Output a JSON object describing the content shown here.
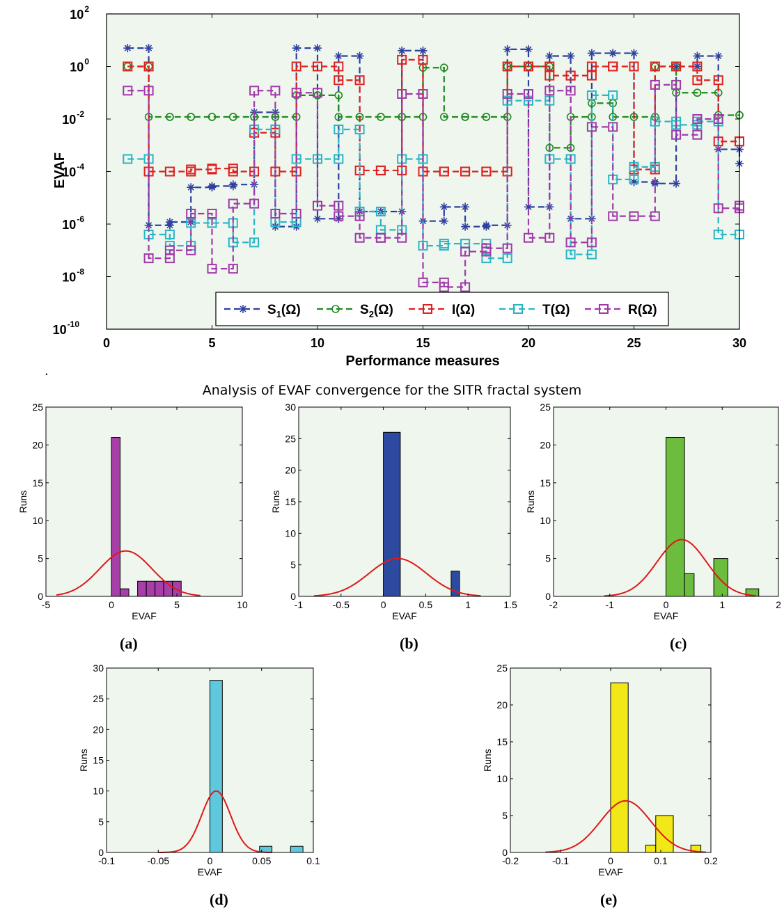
{
  "main_plot": {
    "ylabel": "EVAF",
    "xlabel": "Performance measures",
    "xlim": [
      0,
      30
    ],
    "ylim_log10": [
      -10,
      2
    ],
    "y_scale": "log",
    "x_ticks": [
      "0",
      "5",
      "10",
      "15",
      "20",
      "25",
      "30"
    ],
    "y_ticks": [
      {
        "base": "10",
        "exp": "2"
      },
      {
        "base": "10",
        "exp": "0"
      },
      {
        "base": "10",
        "exp": "-2"
      },
      {
        "base": "10",
        "exp": "-4"
      },
      {
        "base": "10",
        "exp": "-6"
      },
      {
        "base": "10",
        "exp": "-8"
      },
      {
        "base": "10",
        "exp": "-10"
      }
    ],
    "background": "#eef6ee",
    "legend_position": "bottom-right",
    "legend": [
      {
        "prefix": "S",
        "sub": "1",
        "suffix": "(Ω)"
      },
      {
        "prefix": "S",
        "sub": "2",
        "suffix": "(Ω)"
      },
      {
        "prefix": "I",
        "sub": "",
        "suffix": "(Ω)"
      },
      {
        "prefix": "T",
        "sub": "",
        "suffix": "(Ω)"
      },
      {
        "prefix": "R",
        "sub": "",
        "suffix": "(Ω)"
      }
    ]
  },
  "separator": ".",
  "histogram_title": "Analysis of EVAF convergence for the SITR fractal system",
  "chart_data": [
    {
      "type": "line",
      "y_scale": "log",
      "line_style": "dashed stairs",
      "x": [
        1,
        2,
        3,
        4,
        5,
        6,
        7,
        8,
        9,
        10,
        11,
        12,
        13,
        14,
        15,
        16,
        17,
        18,
        19,
        20,
        21,
        22,
        23,
        24,
        25,
        26,
        27,
        28,
        29,
        30
      ],
      "series": [
        {
          "legend_index": 0,
          "marker": "star",
          "color": "#2e3fa0",
          "values": [
            5,
            9e-07,
            1.2e-06,
            2.5e-05,
            2.8e-05,
            3.2e-05,
            0.018,
            8e-07,
            5,
            1.6e-06,
            2.5,
            3e-06,
            3e-06,
            4,
            1.3e-06,
            4.5e-06,
            8e-07,
            9e-07,
            4.5,
            4.5e-06,
            2.5,
            1.6e-06,
            3.2,
            3.2,
            4e-05,
            3.5e-05,
            1,
            2.5,
            0.0007,
            0.0002
          ]
        },
        {
          "legend_index": 1,
          "marker": "circle",
          "color": "#1f8a1f",
          "values": [
            1,
            0.012,
            0.012,
            0.012,
            0.012,
            0.012,
            0.012,
            0.012,
            0.08,
            0.08,
            0.012,
            0.012,
            0.012,
            0.012,
            0.9,
            0.012,
            0.012,
            0.012,
            1,
            1,
            0.0008,
            0.012,
            0.04,
            0.012,
            0.012,
            1,
            0.1,
            0.1,
            0.014,
            0.014
          ]
        },
        {
          "legend_index": 2,
          "marker": "square",
          "color": "#e02020",
          "values": [
            1,
            0.0001,
            0.0001,
            0.00012,
            0.00013,
            0.0001,
            0.003,
            0.0001,
            1,
            1,
            0.3,
            0.00011,
            0.00011,
            1.8,
            0.0001,
            0.0001,
            0.0001,
            0.0001,
            1,
            1,
            0.45,
            0.45,
            1,
            1,
            0.00012,
            1,
            1,
            0.3,
            0.0014,
            0.0014
          ]
        },
        {
          "legend_index": 3,
          "marker": "square",
          "color": "#2ab5c5",
          "values": [
            0.0003,
            4e-07,
            1.5e-07,
            1.1e-06,
            1.1e-06,
            2e-07,
            0.004,
            1.2e-06,
            0.0003,
            0.0003,
            0.004,
            3e-06,
            6e-07,
            0.0003,
            1.5e-07,
            1.8e-07,
            1.8e-07,
            5e-08,
            0.05,
            0.05,
            0.0003,
            7e-08,
            0.08,
            5e-05,
            0.00015,
            0.008,
            0.006,
            0.008,
            4e-07,
            4e-07
          ]
        },
        {
          "legend_index": 4,
          "marker": "square",
          "color": "#a03aa8",
          "values": [
            0.12,
            5e-08,
            1e-07,
            2.5e-06,
            2e-08,
            6e-06,
            0.12,
            2.5e-06,
            0.1,
            5e-06,
            2e-06,
            3e-07,
            3e-07,
            0.09,
            6e-09,
            4e-09,
            9e-08,
            1.2e-07,
            0.09,
            3e-07,
            0.12,
            2e-07,
            0.005,
            2e-06,
            2e-06,
            0.2,
            0.0025,
            0.01,
            4e-06,
            5e-06
          ]
        }
      ]
    },
    {
      "type": "bar",
      "panel": "(a)",
      "xlabel": "EVAF",
      "ylabel": "Runs",
      "xlim": [
        -5,
        10
      ],
      "ylim": [
        0,
        25
      ],
      "x_ticks": [
        "-5",
        "0",
        "5",
        "10"
      ],
      "y_ticks": [
        "0",
        "5",
        "10",
        "15",
        "20",
        "25"
      ],
      "bar_color": "#a83ea8",
      "bins": [
        {
          "x0": 0,
          "x1": 0.6667,
          "count": 21
        },
        {
          "x0": 0.6667,
          "x1": 1.3333,
          "count": 1
        },
        {
          "x0": 1.3333,
          "x1": 2,
          "count": 0
        },
        {
          "x0": 2,
          "x1": 2.6667,
          "count": 2
        },
        {
          "x0": 2.6667,
          "x1": 3.3333,
          "count": 2
        },
        {
          "x0": 3.3333,
          "x1": 4,
          "count": 2
        },
        {
          "x0": 4,
          "x1": 4.6667,
          "count": 2
        },
        {
          "x0": 4.6667,
          "x1": 5.3333,
          "count": 2
        }
      ],
      "fit": {
        "mean": 1.1,
        "sigma": 2.0,
        "peak": 6,
        "x_from": -4.2,
        "x_to": 6.8
      }
    },
    {
      "type": "bar",
      "panel": "(b)",
      "xlabel": "EVAF",
      "ylabel": "Runs",
      "xlim": [
        -1,
        1.5
      ],
      "ylim": [
        0,
        30
      ],
      "x_ticks": [
        "-1",
        "-0.5",
        "0",
        "0.5",
        "1",
        "1.5"
      ],
      "y_ticks": [
        "0",
        "5",
        "10",
        "15",
        "20",
        "25",
        "30"
      ],
      "bar_color": "#2e4aa0",
      "bins": [
        {
          "x0": 0,
          "x1": 0.2,
          "count": 26
        },
        {
          "x0": 0.8,
          "x1": 0.9,
          "count": 4
        }
      ],
      "fit": {
        "mean": 0.17,
        "sigma": 0.34,
        "peak": 6,
        "x_from": -0.82,
        "x_to": 1.15
      }
    },
    {
      "type": "bar",
      "panel": "(c)",
      "xlabel": "EVAF",
      "ylabel": "Runs",
      "xlim": [
        -2,
        2
      ],
      "ylim": [
        0,
        25
      ],
      "x_ticks": [
        "-2",
        "-1",
        "0",
        "1",
        "2"
      ],
      "y_ticks": [
        "0",
        "5",
        "10",
        "15",
        "20",
        "25"
      ],
      "bar_color": "#6cbc3e",
      "bins": [
        {
          "x0": 0,
          "x1": 0.33,
          "count": 21
        },
        {
          "x0": 0.33,
          "x1": 0.5,
          "count": 3
        },
        {
          "x0": 0.85,
          "x1": 1.1,
          "count": 5
        },
        {
          "x0": 1.42,
          "x1": 1.65,
          "count": 1
        }
      ],
      "fit": {
        "mean": 0.28,
        "sigma": 0.44,
        "peak": 7.5,
        "x_from": -1.1,
        "x_to": 1.6
      }
    },
    {
      "type": "bar",
      "panel": "(d)",
      "xlabel": "EVAF",
      "ylabel": "Runs",
      "xlim": [
        -0.1,
        0.1
      ],
      "ylim": [
        0,
        30
      ],
      "x_ticks": [
        "-0.1",
        "-0.05",
        "0",
        "0.05",
        "0.1"
      ],
      "y_ticks": [
        "0",
        "5",
        "10",
        "15",
        "20",
        "25",
        "30"
      ],
      "bar_color": "#5fc8dc",
      "bins": [
        {
          "x0": 0,
          "x1": 0.012,
          "count": 28
        },
        {
          "x0": 0.048,
          "x1": 0.06,
          "count": 1
        },
        {
          "x0": 0.078,
          "x1": 0.09,
          "count": 1
        }
      ],
      "fit": {
        "mean": 0.006,
        "sigma": 0.014,
        "peak": 10,
        "x_from": -0.05,
        "x_to": 0.06
      }
    },
    {
      "type": "bar",
      "panel": "(e)",
      "xlabel": "EVAF",
      "ylabel": "Runs",
      "xlim": [
        -0.2,
        0.2
      ],
      "ylim": [
        0,
        25
      ],
      "x_ticks": [
        "-0.2",
        "-0.1",
        "0",
        "0.1",
        "0.2"
      ],
      "y_ticks": [
        "0",
        "5",
        "10",
        "15",
        "20",
        "25"
      ],
      "bar_color": "#f2e818",
      "bins": [
        {
          "x0": 0,
          "x1": 0.035,
          "count": 23
        },
        {
          "x0": 0.07,
          "x1": 0.09,
          "count": 1
        },
        {
          "x0": 0.09,
          "x1": 0.125,
          "count": 5
        },
        {
          "x0": 0.16,
          "x1": 0.18,
          "count": 1
        }
      ],
      "fit": {
        "mean": 0.03,
        "sigma": 0.05,
        "peak": 7,
        "x_from": -0.13,
        "x_to": 0.19
      }
    }
  ]
}
